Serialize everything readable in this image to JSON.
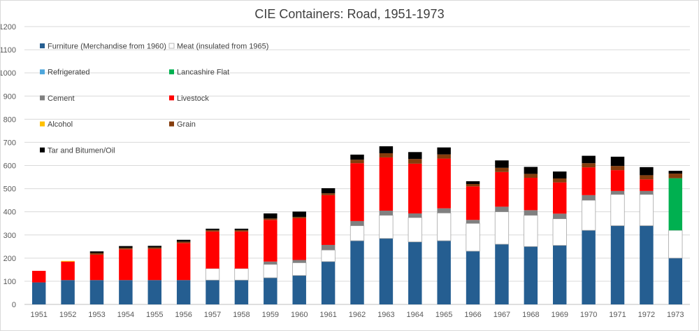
{
  "chart_data": {
    "type": "bar",
    "stacked": true,
    "title": "CIE Containers: Road, 1951-1973",
    "xlabel": "",
    "ylabel": "",
    "ylim": [
      0,
      1200
    ],
    "yticks": [
      0,
      100,
      200,
      300,
      400,
      500,
      600,
      700,
      800,
      900,
      1000,
      1100,
      1200
    ],
    "grid": true,
    "legend_position": "top-left",
    "categories": [
      "1951",
      "1952",
      "1953",
      "1954",
      "1955",
      "1956",
      "1957",
      "1958",
      "1959",
      "1960",
      "1961",
      "1962",
      "1963",
      "1964",
      "1965",
      "1966",
      "1967",
      "1968",
      "1969",
      "1970",
      "1971",
      "1972",
      "1973"
    ],
    "series": [
      {
        "name": "Furniture (Merchandise from 1960)",
        "color": "#255e91",
        "outline": "",
        "values": [
          95,
          105,
          105,
          105,
          105,
          105,
          105,
          105,
          115,
          125,
          185,
          275,
          285,
          270,
          275,
          230,
          260,
          250,
          255,
          320,
          340,
          340,
          200
        ]
      },
      {
        "name": "Meat (insulated from 1965)",
        "color": "#ffffff",
        "outline": "#a6a6a6",
        "values": [
          0,
          0,
          0,
          0,
          0,
          0,
          50,
          50,
          58,
          55,
          50,
          65,
          100,
          105,
          120,
          120,
          140,
          135,
          115,
          130,
          135,
          135,
          120
        ]
      },
      {
        "name": "Refrigerated",
        "color": "#4ea6dc",
        "outline": "",
        "values": [
          0,
          0,
          0,
          0,
          0,
          0,
          0,
          0,
          0,
          0,
          0,
          0,
          0,
          0,
          0,
          0,
          0,
          0,
          0,
          0,
          0,
          0,
          0
        ]
      },
      {
        "name": "Lancashire Flat",
        "color": "#00b050",
        "outline": "",
        "values": [
          0,
          0,
          0,
          0,
          0,
          0,
          0,
          0,
          0,
          0,
          0,
          0,
          0,
          0,
          0,
          0,
          0,
          0,
          0,
          0,
          0,
          0,
          225
        ]
      },
      {
        "name": "Cement",
        "color": "#808080",
        "outline": "",
        "values": [
          0,
          0,
          0,
          0,
          0,
          0,
          0,
          0,
          12,
          12,
          22,
          20,
          20,
          18,
          20,
          15,
          22,
          22,
          22,
          22,
          15,
          15,
          0
        ]
      },
      {
        "name": "Livestock",
        "color": "#ff0000",
        "outline": "",
        "values": [
          50,
          80,
          110,
          133,
          135,
          160,
          160,
          160,
          180,
          180,
          215,
          250,
          230,
          215,
          215,
          145,
          150,
          140,
          135,
          120,
          90,
          50,
          0
        ]
      },
      {
        "name": "Alcohol",
        "color": "#ffc000",
        "outline": "",
        "values": [
          0,
          3,
          0,
          0,
          0,
          0,
          0,
          0,
          0,
          0,
          0,
          0,
          0,
          0,
          0,
          0,
          0,
          0,
          0,
          0,
          0,
          0,
          0
        ]
      },
      {
        "name": "Grain",
        "color": "#843c0c",
        "outline": "",
        "values": [
          0,
          0,
          7,
          6,
          6,
          6,
          6,
          6,
          6,
          6,
          8,
          15,
          18,
          20,
          18,
          10,
          18,
          17,
          17,
          18,
          18,
          18,
          20
        ]
      },
      {
        "name": "Tar and Bitumen/Oil",
        "color": "#000000",
        "outline": "",
        "values": [
          0,
          0,
          7,
          8,
          7,
          8,
          6,
          6,
          22,
          23,
          22,
          22,
          30,
          30,
          30,
          12,
          32,
          30,
          30,
          32,
          40,
          35,
          12
        ]
      }
    ]
  }
}
